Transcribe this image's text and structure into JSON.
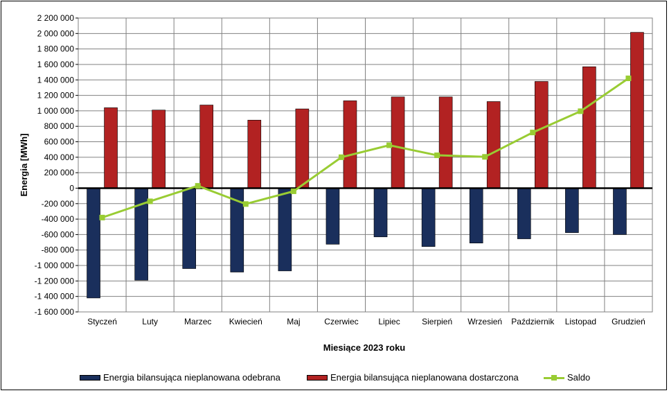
{
  "chart_data": {
    "type": "bar",
    "categories": [
      "Styczeń",
      "Luty",
      "Marzec",
      "Kwiecień",
      "Maj",
      "Czerwiec",
      "Lipiec",
      "Sierpień",
      "Wrzesień",
      "Październik",
      "Listopad",
      "Grudzień"
    ],
    "series": [
      {
        "name": "Energia bilansująca nieplanowana odebrana",
        "kind": "bar",
        "color": "#1a2f5c",
        "values": [
          -1420000,
          -1190000,
          -1040000,
          -1085000,
          -1070000,
          -725000,
          -630000,
          -755000,
          -710000,
          -655000,
          -575000,
          -600000
        ]
      },
      {
        "name": "Energia bilansująca nieplanowana dostarczona",
        "kind": "bar",
        "color": "#b22222",
        "values": [
          1040000,
          1010000,
          1075000,
          880000,
          1025000,
          1130000,
          1180000,
          1180000,
          1120000,
          1380000,
          1570000,
          2015000
        ]
      },
      {
        "name": "Saldo",
        "kind": "line",
        "color": "#99cc33",
        "values": [
          -380000,
          -170000,
          30000,
          -205000,
          -40000,
          400000,
          555000,
          425000,
          405000,
          720000,
          995000,
          1420000
        ]
      }
    ],
    "xlabel": "Miesiące 2023  roku",
    "ylabel": "Energia [MWh]",
    "ylim": [
      -1600000,
      2200000
    ],
    "ytick_step": 200000,
    "ytick_labels": [
      "-1 600 000",
      "-1 400 000",
      "-1 200 000",
      "-1 000 000",
      "-800 000",
      "-600 000",
      "-400 000",
      "-200 000",
      "0",
      "200 000",
      "400 000",
      "600 000",
      "800 000",
      "1 000 000",
      "1 200 000",
      "1 400 000",
      "1 600 000",
      "1 800 000",
      "2 000 000",
      "2 200 000"
    ],
    "grid": true,
    "legend_position": "bottom"
  }
}
